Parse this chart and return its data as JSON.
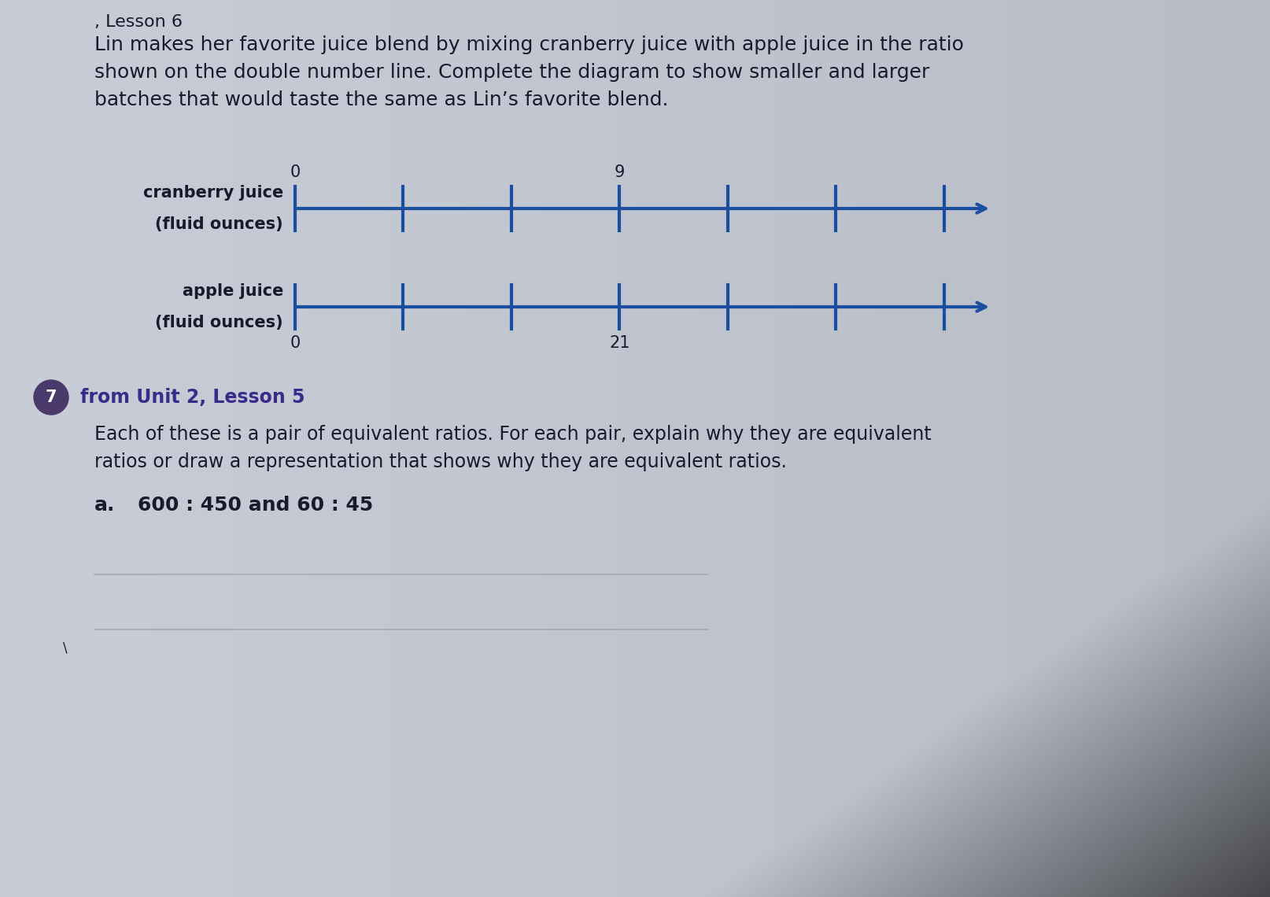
{
  "background_color": "#c8cdd8",
  "text_color": "#1a1a2e",
  "title_text": ", Lesson 6",
  "intro_text_line1": "Lin makes her favorite juice blend by mixing cranberry juice with apple juice in the ratio",
  "intro_text_line2": "shown on the double number line. Complete the diagram to show smaller and larger",
  "intro_text_line3": "batches that would taste the same as Lin’s favorite blend.",
  "line_color": "#1a4fa0",
  "tick_color": "#1a4fa0",
  "cranberry_label_line1": "cranberry juice",
  "cranberry_label_line2": "(fluid ounces)",
  "apple_label_line1": "apple juice",
  "apple_label_line2": "(fluid ounces)",
  "cranberry_labeled": {
    "0": "0",
    "3": "9"
  },
  "apple_labeled": {
    "0": "0",
    "3": "21"
  },
  "n_ticks": 7,
  "section7_circle_color": "#4a3a6b",
  "section7_text_color": "#3a2a8a",
  "section7_number": "7",
  "section7_from": "from Unit 2, Lesson 5",
  "section7_body1": "Each of these is a pair of equivalent ratios. For each pair, explain why they are equivalent",
  "section7_body2": "ratios or draw a representation that shows why they are equivalent ratios.",
  "section7_a_label": "a.",
  "section7_a_text": "600 : 450 and 60 : 45",
  "font_size_intro": 18,
  "font_size_labels": 15,
  "font_size_tick_labels": 15,
  "font_size_section_body": 17,
  "font_size_a": 18,
  "answer_line_color": "#aaaaaa"
}
